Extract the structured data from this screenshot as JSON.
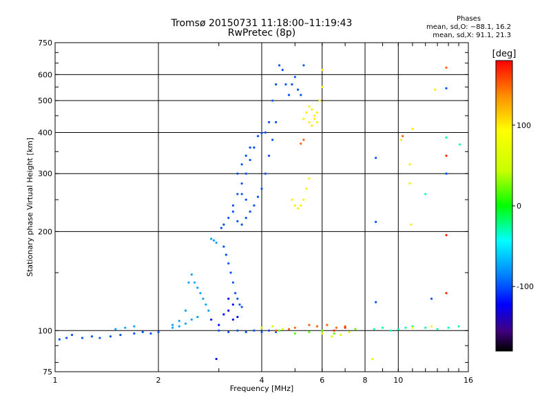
{
  "chart_data": {
    "type": "scatter",
    "title": "Tromsø 20150731 11:18:00–11:19:43",
    "subtitle": "RwPretec (8p)",
    "xlabel": "Frequency [MHz]",
    "ylabel": "Stationary phase Virtual Height [km]",
    "x_scale": "log",
    "y_scale": "log",
    "xlim": [
      1,
      16
    ],
    "ylim": [
      75,
      750
    ],
    "xticks": [
      1,
      2,
      4,
      6,
      8,
      10,
      16
    ],
    "yticks": [
      75,
      100,
      200,
      300,
      400,
      500,
      600,
      750
    ],
    "grid": true,
    "colorbar": {
      "label": "[deg]",
      "range": [
        -180,
        180
      ],
      "ticks": [
        100,
        0,
        -100
      ]
    },
    "stats": {
      "caption": "Phases",
      "line_o": "mean, sd,O: −88.1, 16.2",
      "line_x": "mean, sd,X:  91.1, 21.3"
    },
    "series": [
      {
        "phase": -100,
        "points": [
          [
            1.03,
            94
          ],
          [
            1.08,
            95
          ],
          [
            1.12,
            97
          ],
          [
            1.2,
            95
          ],
          [
            1.28,
            96
          ],
          [
            1.35,
            95
          ],
          [
            1.45,
            96
          ],
          [
            1.55,
            97
          ],
          [
            1.7,
            98
          ],
          [
            1.8,
            99
          ],
          [
            1.9,
            98
          ],
          [
            2.0,
            99
          ],
          [
            3.05,
            205
          ],
          [
            3.1,
            210
          ],
          [
            3.2,
            220
          ],
          [
            3.3,
            240
          ],
          [
            3.4,
            260
          ],
          [
            3.5,
            280
          ],
          [
            3.6,
            300
          ],
          [
            3.7,
            330
          ],
          [
            3.8,
            360
          ],
          [
            3.9,
            390
          ],
          [
            4.0,
            398
          ],
          [
            4.1,
            400
          ],
          [
            4.2,
            430
          ],
          [
            4.3,
            500
          ],
          [
            4.4,
            560
          ],
          [
            4.5,
            640
          ],
          [
            4.6,
            620
          ],
          [
            4.7,
            560
          ],
          [
            4.8,
            520
          ],
          [
            4.9,
            560
          ],
          [
            5.0,
            590
          ],
          [
            5.1,
            540
          ],
          [
            5.2,
            520
          ],
          [
            5.3,
            640
          ],
          [
            3.3,
            230
          ],
          [
            3.4,
            215
          ],
          [
            3.5,
            210
          ],
          [
            3.6,
            220
          ],
          [
            3.7,
            230
          ],
          [
            3.8,
            240
          ],
          [
            3.9,
            255
          ],
          [
            4.0,
            270
          ],
          [
            4.1,
            300
          ],
          [
            4.2,
            340
          ],
          [
            4.3,
            380
          ],
          [
            4.4,
            430
          ],
          [
            3.4,
            300
          ],
          [
            3.5,
            320
          ],
          [
            3.6,
            340
          ],
          [
            3.7,
            360
          ],
          [
            3.5,
            260
          ],
          [
            3.6,
            250
          ],
          [
            3.1,
            180
          ],
          [
            3.15,
            170
          ],
          [
            3.2,
            160
          ],
          [
            3.25,
            150
          ],
          [
            3.3,
            140
          ],
          [
            3.35,
            130
          ],
          [
            3.4,
            125
          ],
          [
            3.45,
            120
          ],
          [
            3.5,
            118
          ],
          [
            3.0,
            100
          ],
          [
            3.2,
            99
          ],
          [
            3.4,
            100
          ],
          [
            3.6,
            99
          ],
          [
            3.8,
            100
          ],
          [
            4.0,
            99
          ],
          [
            4.2,
            100
          ],
          [
            4.4,
            99
          ],
          [
            8.6,
            335
          ],
          [
            8.6,
            214
          ],
          [
            8.6,
            122
          ],
          [
            13.8,
            545
          ],
          [
            13.8,
            300
          ],
          [
            12.5,
            125
          ]
        ]
      },
      {
        "phase": -120,
        "points": [
          [
            3.1,
            112
          ],
          [
            3.2,
            115
          ],
          [
            3.3,
            108
          ],
          [
            3.4,
            110
          ],
          [
            3.2,
            125
          ],
          [
            3.3,
            120
          ],
          [
            2.95,
            82
          ],
          [
            2.85,
            108
          ],
          [
            3.0,
            104
          ]
        ]
      },
      {
        "phase": -75,
        "points": [
          [
            2.2,
            102
          ],
          [
            2.3,
            103
          ],
          [
            2.4,
            105
          ],
          [
            2.5,
            108
          ],
          [
            2.6,
            110
          ],
          [
            2.45,
            140
          ],
          [
            2.5,
            148
          ],
          [
            2.55,
            140
          ],
          [
            2.6,
            135
          ],
          [
            2.65,
            130
          ],
          [
            2.7,
            125
          ],
          [
            2.75,
            120
          ],
          [
            2.8,
            115
          ],
          [
            2.4,
            115
          ],
          [
            2.3,
            107
          ],
          [
            2.2,
            104
          ],
          [
            2.85,
            190
          ],
          [
            2.9,
            188
          ],
          [
            2.95,
            185
          ],
          [
            1.5,
            101
          ],
          [
            1.6,
            102
          ],
          [
            1.7,
            103
          ]
        ]
      },
      {
        "phase": 100,
        "points": [
          [
            4.9,
            250
          ],
          [
            5.0,
            240
          ],
          [
            5.1,
            235
          ],
          [
            5.2,
            240
          ],
          [
            5.3,
            250
          ],
          [
            5.4,
            270
          ],
          [
            5.5,
            290
          ],
          [
            5.3,
            440
          ],
          [
            5.4,
            460
          ],
          [
            5.5,
            480
          ],
          [
            5.6,
            470
          ],
          [
            5.7,
            450
          ],
          [
            5.8,
            460
          ],
          [
            5.9,
            500
          ],
          [
            6.0,
            550
          ],
          [
            6.0,
            620
          ],
          [
            5.5,
            430
          ],
          [
            5.6,
            420
          ],
          [
            5.7,
            440
          ],
          [
            5.8,
            430
          ],
          [
            11.0,
            410
          ],
          [
            10.2,
            380
          ],
          [
            10.8,
            320
          ],
          [
            10.8,
            280
          ],
          [
            12.8,
            540
          ],
          [
            10.9,
            210
          ]
        ]
      },
      {
        "phase": 150,
        "points": [
          [
            4.4,
            100
          ],
          [
            4.8,
            101
          ],
          [
            5.0,
            102
          ],
          [
            5.5,
            104
          ],
          [
            5.8,
            103
          ],
          [
            6.2,
            104
          ],
          [
            6.6,
            102
          ],
          [
            7.0,
            103
          ],
          [
            5.2,
            370
          ],
          [
            5.3,
            380
          ],
          [
            10.3,
            390
          ],
          [
            13.8,
            630
          ]
        ]
      },
      {
        "phase": 60,
        "points": [
          [
            4.0,
            102
          ],
          [
            4.3,
            103
          ],
          [
            4.6,
            101
          ],
          [
            6.0,
            98
          ],
          [
            6.4,
            96
          ],
          [
            6.8,
            97
          ],
          [
            7.2,
            99
          ]
        ]
      },
      {
        "phase": 20,
        "points": [
          [
            4.5,
            100
          ],
          [
            5.0,
            98
          ],
          [
            5.5,
            99
          ],
          [
            6.0,
            100
          ],
          [
            6.5,
            98
          ],
          [
            7.5,
            101
          ]
        ]
      },
      {
        "phase": -30,
        "points": [
          [
            8.5,
            101
          ],
          [
            9.0,
            102
          ],
          [
            9.5,
            100
          ],
          [
            10.0,
            101
          ],
          [
            10.5,
            102
          ],
          [
            11.0,
            103
          ],
          [
            12.0,
            102
          ],
          [
            13.0,
            101
          ],
          [
            14.0,
            102
          ],
          [
            15.0,
            103
          ],
          [
            15.1,
            368
          ],
          [
            13.8,
            386
          ],
          [
            12.0,
            260
          ]
        ]
      },
      {
        "phase": 170,
        "points": [
          [
            13.8,
            340
          ],
          [
            13.8,
            195
          ],
          [
            13.8,
            130
          ],
          [
            6.5,
            100
          ],
          [
            7.0,
            102
          ]
        ]
      },
      {
        "phase": 80,
        "points": [
          [
            8.4,
            82
          ],
          [
            11.0,
            102
          ],
          [
            12.5,
            103
          ]
        ]
      }
    ]
  }
}
